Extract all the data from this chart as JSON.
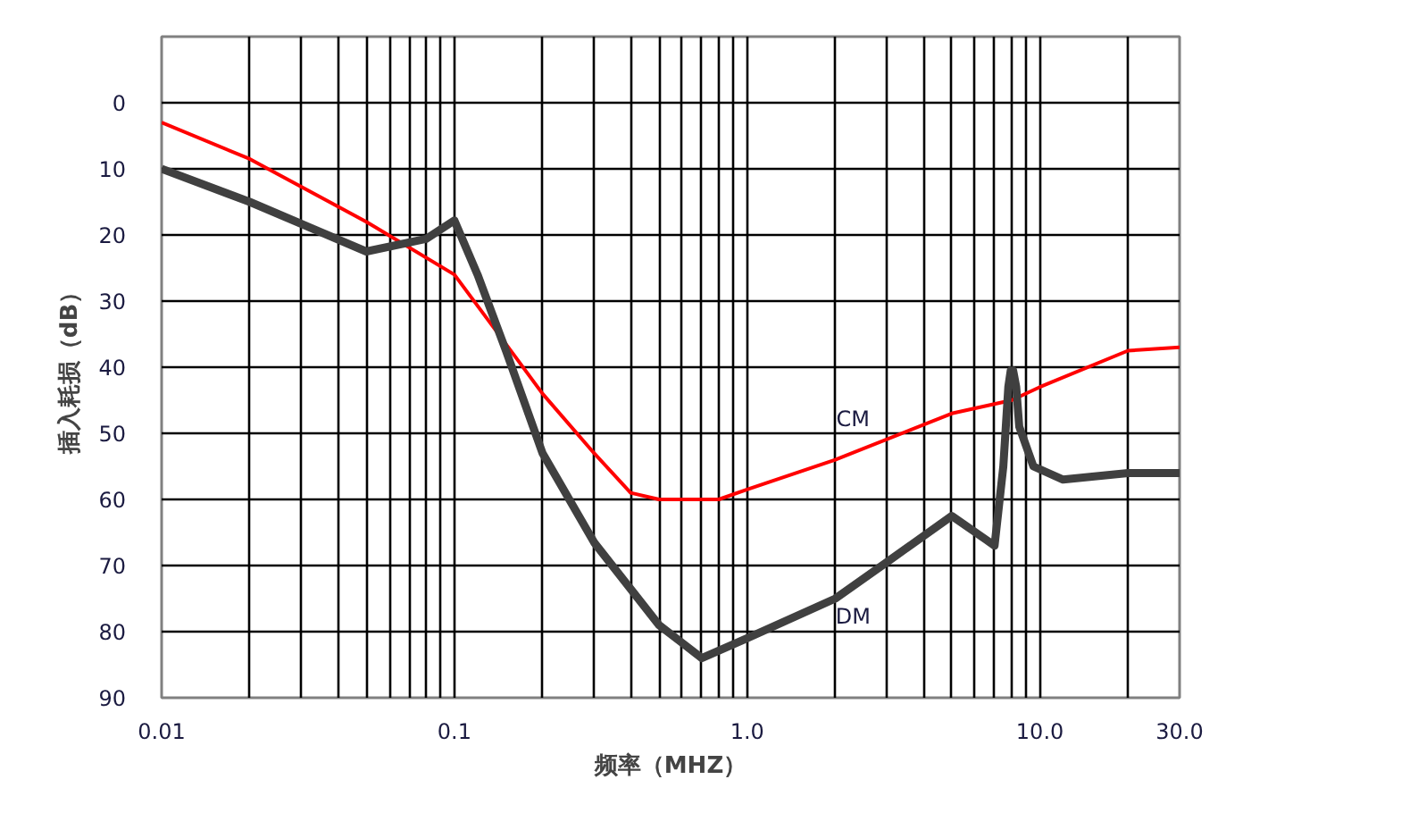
{
  "chart_data": {
    "type": "line",
    "xlabel": "频率（MHZ）",
    "ylabel": "插入耗损（dB）",
    "log": "x",
    "grid": true,
    "marker": "none",
    "line_style": "solid",
    "xlim": [
      0.01,
      30
    ],
    "ylim": [
      90,
      -10
    ],
    "xticks": [
      {
        "value": 0.01,
        "label": "0.01"
      },
      {
        "value": 0.02,
        "label": null
      },
      {
        "value": 0.03,
        "label": null
      },
      {
        "value": 0.04,
        "label": null
      },
      {
        "value": 0.05,
        "label": null
      },
      {
        "value": 0.06,
        "label": null
      },
      {
        "value": 0.07,
        "label": null
      },
      {
        "value": 0.08,
        "label": null
      },
      {
        "value": 0.09,
        "label": null
      },
      {
        "value": 0.1,
        "label": "0.1"
      },
      {
        "value": 0.2,
        "label": null
      },
      {
        "value": 0.3,
        "label": null
      },
      {
        "value": 0.4,
        "label": null
      },
      {
        "value": 0.5,
        "label": null
      },
      {
        "value": 0.6,
        "label": null
      },
      {
        "value": 0.7,
        "label": null
      },
      {
        "value": 0.8,
        "label": null
      },
      {
        "value": 0.9,
        "label": null
      },
      {
        "value": 1,
        "label": "1.0"
      },
      {
        "value": 2,
        "label": null
      },
      {
        "value": 3,
        "label": null
      },
      {
        "value": 4,
        "label": null
      },
      {
        "value": 5,
        "label": null
      },
      {
        "value": 6,
        "label": null
      },
      {
        "value": 7,
        "label": null
      },
      {
        "value": 8,
        "label": null
      },
      {
        "value": 9,
        "label": null
      },
      {
        "value": 10,
        "label": "10.0"
      },
      {
        "value": 20,
        "label": null
      },
      {
        "value": 30,
        "label": "30.0"
      }
    ],
    "yticks": [
      0,
      10,
      20,
      30,
      40,
      50,
      60,
      70,
      80,
      90
    ],
    "series": [
      {
        "name": "CM",
        "color": "#ff0000",
        "x": [
          0.01,
          0.02,
          0.05,
          0.1,
          0.15,
          0.2,
          0.3,
          0.4,
          0.5,
          0.8,
          1,
          2,
          5,
          8,
          10,
          20,
          30
        ],
        "values": [
          3,
          8.5,
          18,
          26,
          36.5,
          44,
          53,
          59,
          60,
          60,
          58.5,
          54,
          47,
          45,
          43,
          37.5,
          37
        ]
      },
      {
        "name": "DM",
        "color": "#404040",
        "x": [
          0.01,
          0.02,
          0.05,
          0.08,
          0.1,
          0.12,
          0.15,
          0.2,
          0.3,
          0.5,
          0.7,
          1,
          2,
          3,
          5,
          6.5,
          7,
          7.5,
          7.8,
          7.95,
          8.1,
          8.3,
          8.5,
          9.5,
          12,
          20,
          30
        ],
        "values": [
          10,
          15,
          22.5,
          20.6,
          17.8,
          26,
          37.5,
          53,
          66.5,
          79,
          84,
          81,
          75,
          69.5,
          62.5,
          66,
          67,
          55,
          43,
          40.5,
          40.5,
          43,
          49,
          55,
          57,
          56,
          56
        ]
      }
    ]
  }
}
